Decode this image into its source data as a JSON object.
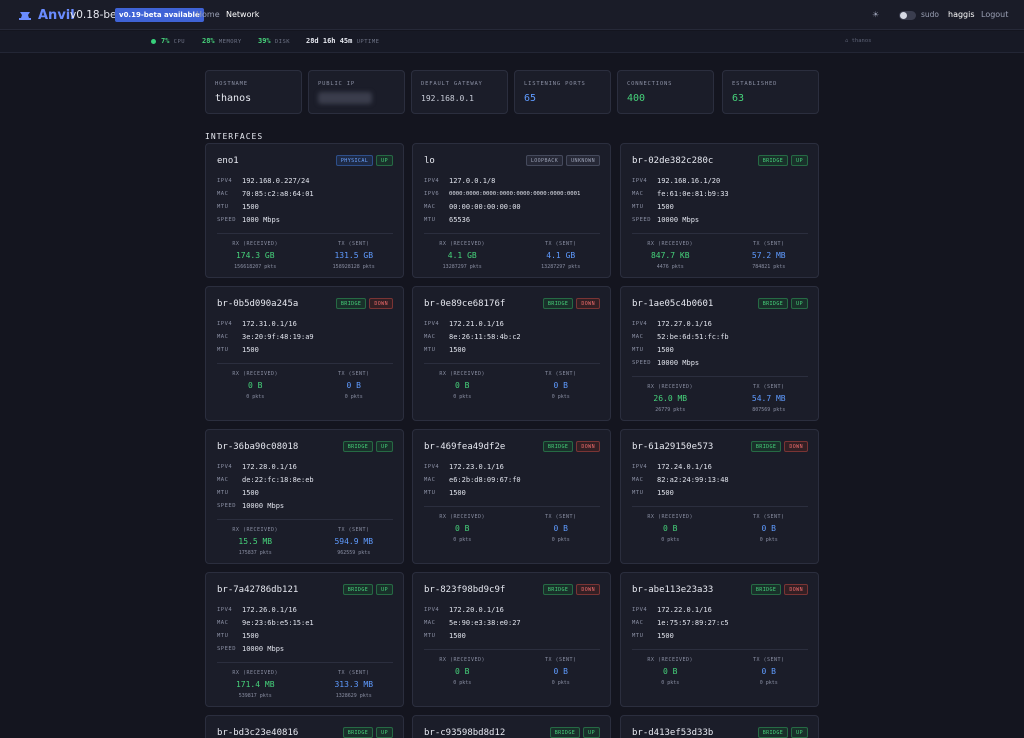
{
  "header": {
    "brand": "Anvil",
    "version": "v0.18-beta",
    "update_badge": "v0.19-beta available",
    "nav": [
      "Home",
      "Network"
    ],
    "theme_icon": "☀",
    "sudo_label": "sudo",
    "username": "haggis",
    "logout": "Logout"
  },
  "stats": {
    "cpu_value": "7%",
    "cpu_label": "CPU",
    "memory_value": "28%",
    "memory_label": "MEMORY",
    "disk_value": "39%",
    "disk_label": "DISK",
    "uptime_value": "28d 16h 45m",
    "uptime_label": "UPTIME",
    "host": "⌂ thanos"
  },
  "summary": {
    "hostname_label": "HOSTNAME",
    "hostname": "thanos",
    "public_ip_label": "PUBLIC IP",
    "gateway_label": "DEFAULT GATEWAY",
    "gateway": "192.168.0.1",
    "ports_label": "LISTENING PORTS",
    "ports": "65",
    "connections_label": "CONNECTIONS",
    "connections": "400",
    "established_label": "ESTABLISHED",
    "established": "63"
  },
  "section_title": "INTERFACES",
  "labels": {
    "ipv4": "IPV4",
    "ipv6": "IPV6",
    "mac": "MAC",
    "mtu": "MTU",
    "speed": "SPEED",
    "rx": "RX (RECEIVED)",
    "tx": "TX (SENT)"
  },
  "interfaces": [
    {
      "name": "eno1",
      "type": "PHYSICAL",
      "state": "UP",
      "ipv4": "192.168.0.227/24",
      "mac": "70:85:c2:a8:64:01",
      "mtu": "1500",
      "speed": "1000 Mbps",
      "rx": "174.3 GB",
      "rx_pkts": "156618207 pkts",
      "tx": "131.5 GB",
      "tx_pkts": "158928128 pkts"
    },
    {
      "name": "lo",
      "type": "LOOPBACK",
      "state": "UNKNOWN",
      "ipv4": "127.0.0.1/8",
      "ipv6": "0000:0000:0000:0000:0000:0000:0000:0001",
      "mac": "00:00:00:00:00:00",
      "mtu": "65536",
      "rx": "4.1 GB",
      "rx_pkts": "13287297 pkts",
      "tx": "4.1 GB",
      "tx_pkts": "13287297 pkts"
    },
    {
      "name": "br-02de382c280c",
      "type": "BRIDGE",
      "state": "UP",
      "ipv4": "192.168.16.1/20",
      "mac": "fe:61:0e:81:b9:33",
      "mtu": "1500",
      "speed": "10000 Mbps",
      "rx": "847.7 KB",
      "rx_pkts": "4476 pkts",
      "tx": "57.2 MB",
      "tx_pkts": "784821 pkts"
    },
    {
      "name": "br-0b5d090a245a",
      "type": "BRIDGE",
      "state": "DOWN",
      "ipv4": "172.31.0.1/16",
      "mac": "3e:20:9f:48:19:a9",
      "mtu": "1500",
      "rx": "0 B",
      "rx_pkts": "0 pkts",
      "tx": "0 B",
      "tx_pkts": "0 pkts"
    },
    {
      "name": "br-0e89ce68176f",
      "type": "BRIDGE",
      "state": "DOWN",
      "ipv4": "172.21.0.1/16",
      "mac": "8e:26:11:58:4b:c2",
      "mtu": "1500",
      "rx": "0 B",
      "rx_pkts": "0 pkts",
      "tx": "0 B",
      "tx_pkts": "0 pkts"
    },
    {
      "name": "br-1ae05c4b0601",
      "type": "BRIDGE",
      "state": "UP",
      "ipv4": "172.27.0.1/16",
      "mac": "52:be:6d:51:fc:fb",
      "mtu": "1500",
      "speed": "10000 Mbps",
      "rx": "26.0 MB",
      "rx_pkts": "26779 pkts",
      "tx": "54.7 MB",
      "tx_pkts": "807569 pkts"
    },
    {
      "name": "br-36ba90c08018",
      "type": "BRIDGE",
      "state": "UP",
      "ipv4": "172.28.0.1/16",
      "mac": "de:22:fc:18:8e:eb",
      "mtu": "1500",
      "speed": "10000 Mbps",
      "rx": "15.5 MB",
      "rx_pkts": "175837 pkts",
      "tx": "594.9 MB",
      "tx_pkts": "962559 pkts"
    },
    {
      "name": "br-469fea49df2e",
      "type": "BRIDGE",
      "state": "DOWN",
      "ipv4": "172.23.0.1/16",
      "mac": "e6:2b:d8:09:67:f0",
      "mtu": "1500",
      "rx": "0 B",
      "rx_pkts": "0 pkts",
      "tx": "0 B",
      "tx_pkts": "0 pkts"
    },
    {
      "name": "br-61a29150e573",
      "type": "BRIDGE",
      "state": "DOWN",
      "ipv4": "172.24.0.1/16",
      "mac": "82:a2:24:99:13:48",
      "mtu": "1500",
      "rx": "0 B",
      "rx_pkts": "0 pkts",
      "tx": "0 B",
      "tx_pkts": "0 pkts"
    },
    {
      "name": "br-7a42786db121",
      "type": "BRIDGE",
      "state": "UP",
      "ipv4": "172.26.0.1/16",
      "mac": "9e:23:6b:e5:15:e1",
      "mtu": "1500",
      "speed": "10000 Mbps",
      "rx": "171.4 MB",
      "rx_pkts": "539817 pkts",
      "tx": "313.3 MB",
      "tx_pkts": "1328629 pkts"
    },
    {
      "name": "br-823f98bd9c9f",
      "type": "BRIDGE",
      "state": "DOWN",
      "ipv4": "172.20.0.1/16",
      "mac": "5e:90:e3:38:e0:27",
      "mtu": "1500",
      "rx": "0 B",
      "rx_pkts": "0 pkts",
      "tx": "0 B",
      "tx_pkts": "0 pkts"
    },
    {
      "name": "br-abe113e23a33",
      "type": "BRIDGE",
      "state": "DOWN",
      "ipv4": "172.22.0.1/16",
      "mac": "1e:75:57:89:27:c5",
      "mtu": "1500",
      "rx": "0 B",
      "rx_pkts": "0 pkts",
      "tx": "0 B",
      "tx_pkts": "0 pkts"
    },
    {
      "name": "br-bd3c23e40816",
      "type": "BRIDGE",
      "state": "UP"
    },
    {
      "name": "br-c93598bd8d12",
      "type": "BRIDGE",
      "state": "UP"
    },
    {
      "name": "br-d413ef53d33b",
      "type": "BRIDGE",
      "state": "UP"
    }
  ],
  "colors": {
    "accent": "#6a8cff",
    "up": "#46d37b",
    "down": "#f06b6b",
    "tx": "#5f9bff",
    "background": "#14151f"
  }
}
